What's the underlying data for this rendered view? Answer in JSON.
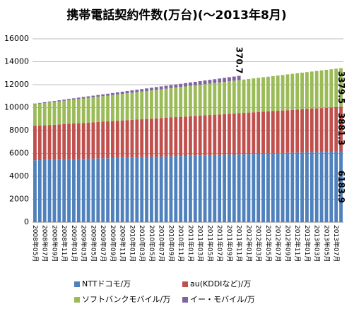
{
  "chart_data": {
    "type": "stacked_bar",
    "title": "携帯電話契約件数(万台)(～2013年8月)",
    "categories": [
      "2008年05月",
      null,
      "2008年07月",
      null,
      "2008年09月",
      null,
      "2008年11月",
      null,
      "2009年01月",
      null,
      "2009年03月",
      null,
      "2009年05月",
      null,
      "2009年07月",
      null,
      "2009年09月",
      null,
      "2009年11月",
      null,
      "2010年01月",
      null,
      "2010年03月",
      null,
      "2010年05月",
      null,
      "2010年07月",
      null,
      "2010年09月",
      null,
      "2010年11月",
      null,
      "2011年01月",
      null,
      "2011年03月",
      null,
      "2011年05月",
      null,
      "2011年07月",
      null,
      "2011年09月",
      null,
      "2011年11月",
      null,
      "2012年01月",
      null,
      "2012年03月",
      null,
      "2012年05月",
      null,
      "2012年07月",
      null,
      "2012年09月",
      null,
      "2012年11月",
      null,
      "2013年01月",
      null,
      "2013年03月",
      null,
      "2013年05月",
      null,
      "2013年07月",
      null
    ],
    "series": [
      {
        "name": "NTTドコモ/万",
        "color": "#4f81bd",
        "values": [
          5400,
          5412,
          5425,
          5437,
          5450,
          5462,
          5474,
          5487,
          5499,
          5512,
          5524,
          5536,
          5549,
          5561,
          5574,
          5586,
          5598,
          5611,
          5623,
          5636,
          5648,
          5660,
          5673,
          5685,
          5698,
          5710,
          5722,
          5735,
          5747,
          5760,
          5772,
          5784,
          5797,
          5809,
          5822,
          5834,
          5846,
          5859,
          5871,
          5884,
          5896,
          5908,
          5921,
          5933,
          5946,
          5958,
          5970,
          5983,
          5995,
          6008,
          6020,
          6032,
          6045,
          6057,
          6070,
          6082,
          6094,
          6107,
          6119,
          6132,
          6144,
          6156,
          6169,
          6183.9
        ]
      },
      {
        "name": "au(KDDIなど)/万",
        "color": "#c0504d",
        "values": [
          3000,
          3014,
          3028,
          3042,
          3056,
          3070,
          3084,
          3098,
          3112,
          3126,
          3140,
          3154,
          3168,
          3182,
          3196,
          3210,
          3224,
          3238,
          3252,
          3266,
          3280,
          3294,
          3308,
          3322,
          3336,
          3350,
          3364,
          3378,
          3392,
          3406,
          3420,
          3434,
          3448,
          3462,
          3476,
          3490,
          3504,
          3518,
          3532,
          3546,
          3560,
          3574,
          3588,
          3602,
          3616,
          3630,
          3644,
          3658,
          3672,
          3686,
          3700,
          3714,
          3728,
          3742,
          3756,
          3770,
          3784,
          3798,
          3812,
          3826,
          3840,
          3854,
          3868,
          3881.3
        ]
      },
      {
        "name": "ソフトバンクモバイル/万",
        "color": "#9bbb59",
        "values": [
          1900,
          1923,
          1947,
          1970,
          1994,
          2017,
          2041,
          2064,
          2088,
          2111,
          2135,
          2158,
          2182,
          2205,
          2229,
          2252,
          2276,
          2299,
          2323,
          2346,
          2370,
          2393,
          2417,
          2440,
          2464,
          2487,
          2511,
          2534,
          2558,
          2581,
          2605,
          2628,
          2652,
          2675,
          2699,
          2722,
          2746,
          2769,
          2793,
          2816,
          2840,
          2863,
          2887,
          2910,
          2934,
          2957,
          2981,
          3004,
          3028,
          3051,
          3075,
          3098,
          3122,
          3145,
          3169,
          3192,
          3216,
          3239,
          3263,
          3286,
          3310,
          3333,
          3357,
          3379.5
        ]
      },
      {
        "name": "イー・モバイル/万",
        "color": "#8064a2",
        "values": [
          50,
          58,
          65,
          73,
          80,
          88,
          96,
          103,
          111,
          118,
          126,
          134,
          141,
          149,
          156,
          164,
          172,
          179,
          187,
          194,
          202,
          210,
          217,
          225,
          232,
          240,
          248,
          255,
          263,
          270,
          278,
          286,
          293,
          301,
          308,
          316,
          324,
          331,
          339,
          346,
          354,
          362,
          370.7,
          null,
          null,
          null,
          null,
          null,
          null,
          null,
          null,
          null,
          null,
          null,
          null,
          null,
          null,
          null,
          null,
          null,
          null,
          null,
          null,
          null
        ]
      }
    ],
    "ylim": [
      0,
      16000
    ],
    "yticks": [
      0,
      2000,
      4000,
      6000,
      8000,
      10000,
      12000,
      14000,
      16000
    ],
    "grid": true,
    "legend": "bottom"
  }
}
